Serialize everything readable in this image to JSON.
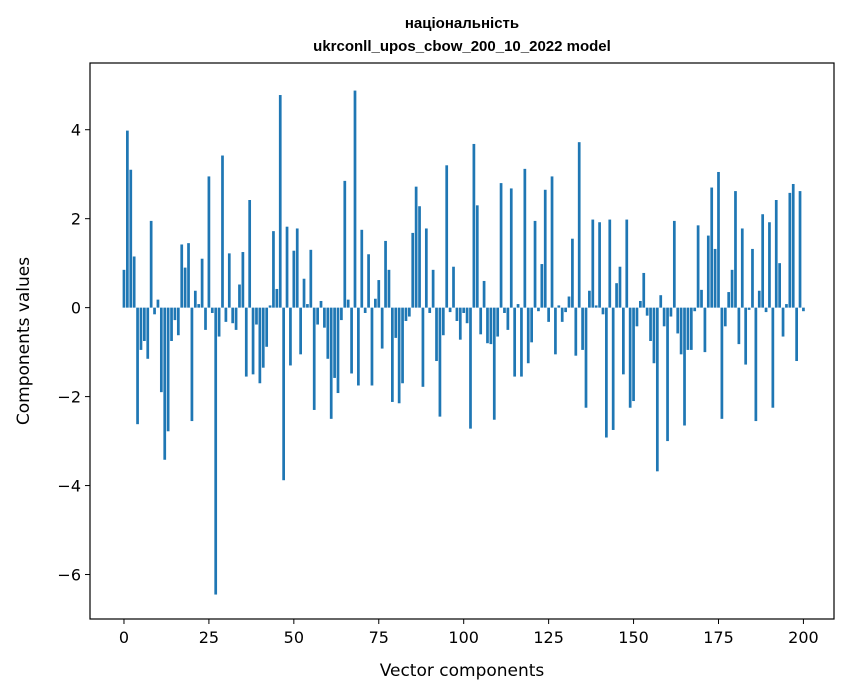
{
  "chart_data": {
    "type": "bar",
    "title": "національність",
    "subtitle": "ukrconll_upos_cbow_200_10_2022 model",
    "xlabel": "Vector components",
    "ylabel": "Components values",
    "xlim": [
      -10,
      209
    ],
    "ylim": [
      -7,
      5.5
    ],
    "xticks": [
      0,
      25,
      50,
      75,
      100,
      125,
      150,
      175,
      200
    ],
    "yticks": [
      -6,
      -4,
      -2,
      0,
      2,
      4
    ],
    "ytick_labels": [
      "−6",
      "−4",
      "−2",
      "0",
      "2",
      "4"
    ],
    "bar_color": "#1f77b4",
    "values": [
      0.85,
      3.98,
      3.1,
      1.15,
      -2.62,
      -0.95,
      -0.75,
      -1.15,
      1.95,
      -0.15,
      0.18,
      -1.9,
      -3.42,
      -2.78,
      -0.75,
      -0.28,
      -0.62,
      1.42,
      0.9,
      1.45,
      -2.55,
      0.38,
      0.08,
      1.1,
      -0.5,
      2.95,
      -0.12,
      -6.45,
      -0.65,
      3.42,
      -0.32,
      1.22,
      -0.35,
      -0.5,
      0.52,
      1.25,
      -1.55,
      2.42,
      -1.5,
      -0.38,
      -1.7,
      -1.35,
      -0.88,
      0.05,
      1.72,
      0.42,
      4.78,
      -3.88,
      1.82,
      -1.3,
      1.28,
      1.78,
      -1.05,
      0.65,
      0.08,
      1.3,
      -2.3,
      -0.38,
      0.15,
      -0.45,
      -1.15,
      -2.5,
      -1.58,
      -1.92,
      -0.28,
      2.85,
      0.18,
      -1.48,
      4.88,
      -1.75,
      1.75,
      -0.12,
      1.2,
      -1.75,
      0.2,
      0.62,
      -0.92,
      1.5,
      0.85,
      -2.12,
      -0.68,
      -2.15,
      -1.7,
      -0.3,
      -0.2,
      1.68,
      2.72,
      2.28,
      -1.78,
      1.78,
      -0.12,
      0.85,
      -1.2,
      -2.45,
      -0.62,
      3.2,
      -0.1,
      0.92,
      -0.3,
      -0.72,
      -0.12,
      -0.35,
      -2.72,
      3.68,
      2.3,
      -0.6,
      0.6,
      -0.8,
      -0.82,
      -2.52,
      -0.65,
      2.8,
      -0.12,
      -0.5,
      2.68,
      -1.55,
      0.08,
      -1.55,
      3.12,
      -1.25,
      -0.78,
      1.95,
      -0.08,
      0.98,
      2.65,
      -0.32,
      2.95,
      -1.05,
      0.05,
      -0.32,
      -0.1,
      0.25,
      1.55,
      -1.08,
      3.72,
      -0.95,
      -2.25,
      0.38,
      1.98,
      0.05,
      1.92,
      -0.15,
      -2.92,
      1.98,
      -2.75,
      0.55,
      0.92,
      -1.5,
      1.98,
      -2.25,
      -2.1,
      -0.42,
      0.15,
      0.78,
      -0.18,
      -0.75,
      -1.25,
      -3.68,
      0.28,
      -0.42,
      -3.0,
      -0.2,
      1.95,
      -0.58,
      -1.05,
      -2.65,
      -0.95,
      -0.95,
      -0.08,
      1.85,
      0.4,
      -1.0,
      1.62,
      2.7,
      1.32,
      3.05,
      -2.5,
      -0.42,
      0.35,
      0.85,
      2.62,
      -0.82,
      1.78,
      -1.28,
      -0.05,
      1.32,
      -2.55,
      0.38,
      2.1,
      -0.1,
      1.92,
      -2.25,
      2.42,
      1.0,
      -0.65,
      0.08,
      2.58,
      2.78,
      -1.2,
      2.62,
      -0.08
    ]
  }
}
